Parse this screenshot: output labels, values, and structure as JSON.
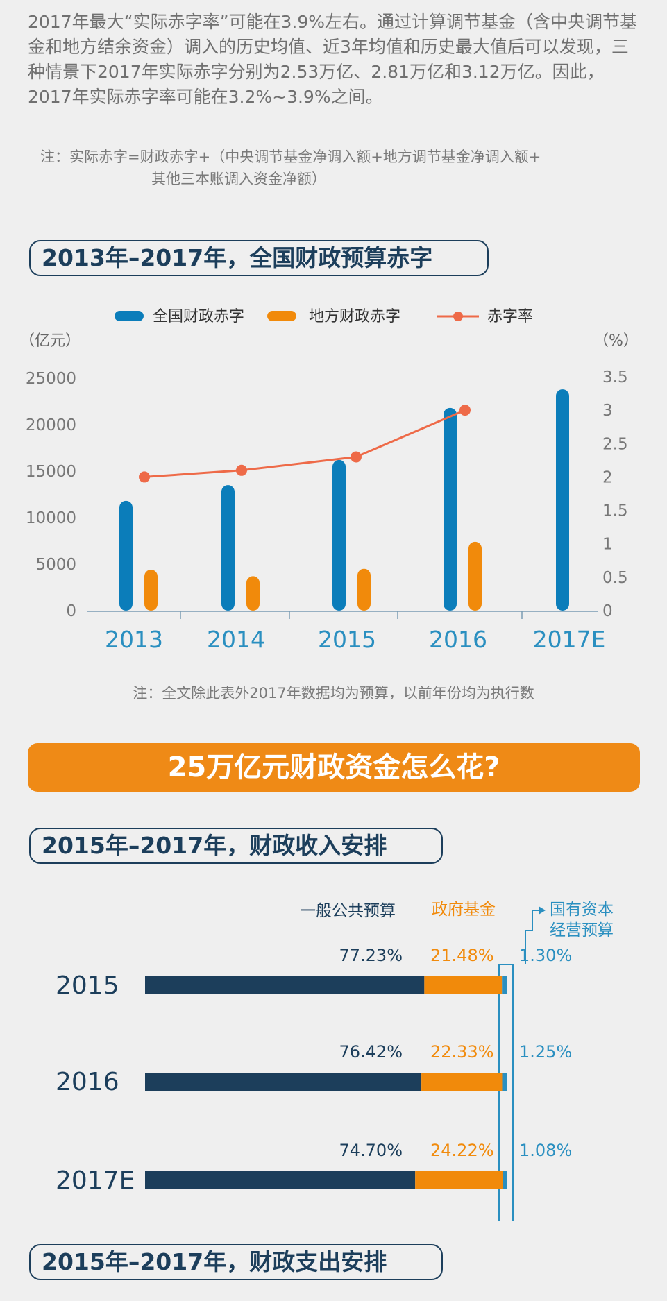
{
  "intro_text": "2017年最大“实际赤字率”可能在3.9%左右。通过计算调节基金（含中央调节基金和地方结余资金）调入的历史均值、近3年均值和历史最大值后可以发现，三种情景下2017年实际赤字分别为2.53万亿、2.81万亿和3.12万亿。因此，2017年实际赤字率可能在3.2%~3.9%之间。",
  "note1": {
    "line1": "注：实际赤字=财政赤字+（中央调节基金净调入额+地方调节基金净调入额+",
    "line2": "其他三本账调入资金净额）"
  },
  "section1_title": "2013年–2017年，全国财政预算赤字",
  "note2": "注：全文除此表外2017年数据均为预算，以前年份均为执行数",
  "banner": "25万亿元财政资金怎么花?",
  "section2_title": "2015年–2017年，财政收入安排",
  "section3_title": "2015年–2017年，财政支出安排",
  "colors": {
    "blue": "#0b7dba",
    "orange": "#f18a0b",
    "rate": "#ee6a48",
    "navy": "#1c3e5b",
    "teal": "#2a8fc0"
  },
  "chart_data": [
    {
      "type": "bar",
      "categories": [
        "2013",
        "2014",
        "2015",
        "2016",
        "2017E"
      ],
      "left_unit": "（亿元）",
      "right_unit": "（%）",
      "y_left_ticks": [
        0,
        5000,
        10000,
        15000,
        20000,
        25000
      ],
      "y_right_ticks": [
        "0",
        "0.5",
        "1",
        "1.5",
        "2",
        "2.5",
        "3",
        "3.5"
      ],
      "ylim_left": [
        0,
        25000
      ],
      "ylim_right": [
        0,
        3.5
      ],
      "legend_position": "top",
      "series": [
        {
          "name": "全国财政赤字",
          "type": "bar",
          "axis": "left",
          "values": [
            11800,
            13500,
            16200,
            21800,
            23800
          ]
        },
        {
          "name": "地方财政赤字",
          "type": "bar",
          "axis": "left",
          "values": [
            4400,
            3700,
            4500,
            7400,
            null
          ]
        },
        {
          "name": "赤字率",
          "type": "line",
          "axis": "right",
          "values": [
            2.0,
            2.1,
            2.3,
            3.0,
            null
          ]
        }
      ]
    },
    {
      "type": "bar",
      "stacked": true,
      "orientation": "horizontal",
      "categories": [
        "2015",
        "2016",
        "2017E"
      ],
      "series": [
        {
          "name": "一般公共预算",
          "values": [
            77.23,
            76.42,
            74.7
          ],
          "labels": [
            "77.23%",
            "76.42%",
            "74.70%"
          ]
        },
        {
          "name": "政府基金",
          "values": [
            21.48,
            22.33,
            24.22
          ],
          "labels": [
            "21.48%",
            "22.33%",
            "24.22%"
          ]
        },
        {
          "name": "国有资本经营预算",
          "values": [
            1.3,
            1.25,
            1.08
          ],
          "labels": [
            "1.30%",
            "1.25%",
            "1.08%"
          ]
        }
      ]
    }
  ]
}
